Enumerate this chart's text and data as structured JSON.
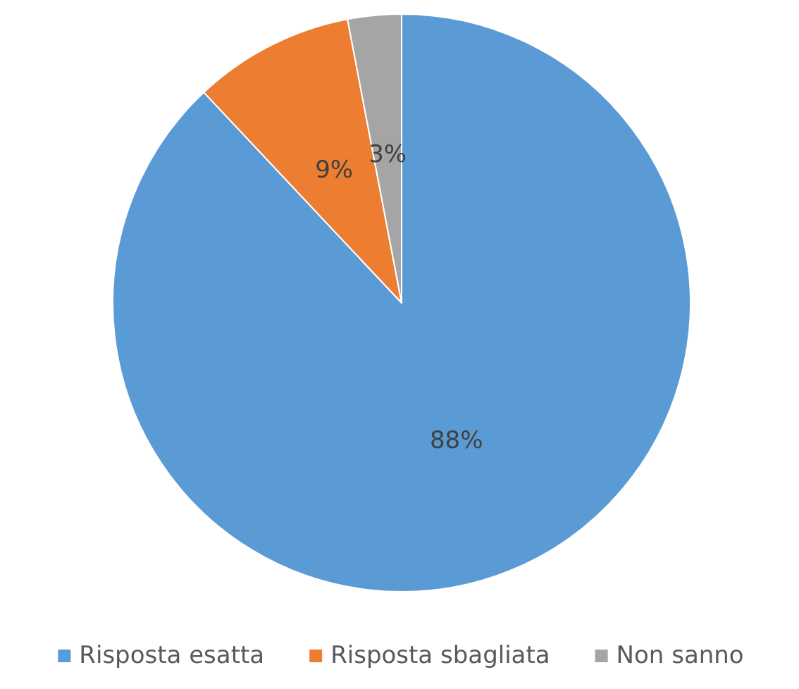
{
  "chart_data": {
    "type": "pie",
    "categories": [
      "Risposta esatta",
      "Risposta sbagliata",
      "Non sanno"
    ],
    "values": [
      88,
      9,
      3
    ],
    "colors": [
      "#5b9bd5",
      "#ed7d31",
      "#a5a5a5"
    ],
    "value_labels": [
      "88%",
      "9%",
      "3%"
    ],
    "legend": "bottom"
  }
}
